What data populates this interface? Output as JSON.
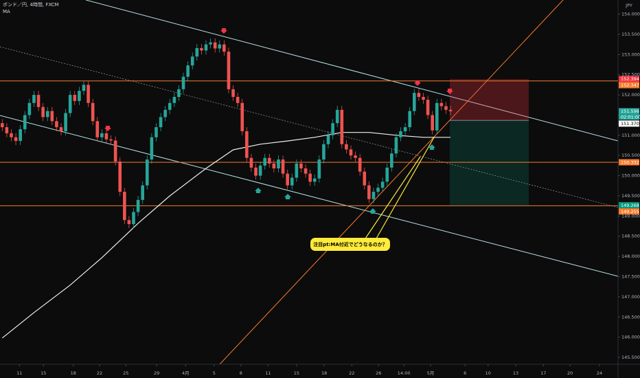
{
  "chart_data": {
    "type": "candlestick",
    "title": "ポンド／円, 4時間, FXCM",
    "indicator": "MA",
    "currency": "JPY",
    "up_color": "#26a69a",
    "down_color": "#ef5350",
    "x": [
      0,
      1,
      2,
      3,
      4,
      5,
      6,
      7,
      8,
      9,
      10,
      11,
      12,
      13,
      14,
      15,
      16,
      17,
      18,
      19,
      20,
      21,
      22,
      23,
      24,
      25,
      26,
      27,
      28,
      29,
      30,
      31,
      32,
      33,
      34,
      35,
      36,
      37,
      38,
      39,
      40,
      41,
      42,
      43,
      44,
      45,
      46,
      47,
      48,
      49,
      50,
      51,
      52,
      53,
      54,
      55,
      56,
      57,
      58,
      59,
      60,
      61,
      62,
      63,
      64,
      65,
      66,
      67,
      68,
      69,
      70,
      71,
      72,
      73,
      74,
      75,
      76,
      77,
      78,
      79,
      80,
      81,
      82,
      83,
      84,
      85,
      86,
      87,
      88,
      89,
      90,
      91,
      92,
      93,
      94,
      95,
      96,
      97,
      98,
      99
    ],
    "open": [
      151.3,
      151.2,
      151.05,
      150.95,
      150.86,
      151.15,
      151.5,
      151.8,
      152.0,
      151.7,
      151.45,
      151.6,
      151.35,
      151.2,
      151.1,
      151.55,
      152.0,
      151.85,
      152.1,
      152.25,
      151.8,
      151.35,
      150.95,
      151.05,
      150.9,
      150.87,
      150.35,
      149.6,
      148.9,
      148.8,
      149.1,
      149.4,
      149.76,
      150.4,
      150.95,
      151.2,
      151.45,
      151.63,
      151.8,
      151.95,
      152.14,
      152.45,
      152.73,
      152.95,
      153.16,
      153.1,
      153.25,
      153.3,
      153.15,
      153.25,
      153.07,
      152.14,
      151.95,
      151.8,
      151.1,
      150.44,
      150.2,
      150.0,
      150.25,
      150.44,
      150.3,
      150.18,
      150.4,
      150.05,
      149.76,
      149.95,
      150.3,
      150.18,
      150.05,
      149.85,
      149.93,
      150.4,
      150.78,
      151.0,
      151.3,
      151.63,
      150.78,
      150.65,
      150.5,
      150.44,
      150.1,
      149.76,
      149.42,
      149.6,
      149.7,
      149.85,
      150.2,
      150.55,
      150.95,
      151.1,
      151.2,
      151.6,
      152.05,
      151.95,
      151.88,
      151.5,
      151.12,
      151.8,
      151.72,
      151.63
    ],
    "high": [
      151.4,
      151.3,
      151.15,
      151.05,
      151.25,
      151.6,
      151.9,
      152.1,
      152.1,
      151.8,
      151.7,
      151.7,
      151.45,
      151.3,
      151.65,
      152.1,
      152.1,
      152.2,
      152.35,
      152.35,
      151.9,
      151.45,
      151.15,
      151.15,
      151.0,
      150.97,
      150.45,
      149.7,
      149.0,
      149.2,
      149.5,
      149.86,
      150.5,
      151.05,
      151.3,
      151.55,
      151.73,
      151.9,
      152.05,
      152.24,
      152.55,
      152.83,
      153.05,
      153.26,
      153.26,
      153.35,
      153.4,
      153.4,
      153.35,
      153.35,
      153.17,
      152.24,
      152.05,
      151.9,
      151.2,
      150.54,
      150.3,
      150.35,
      150.54,
      150.54,
      150.4,
      150.5,
      150.5,
      150.15,
      150.05,
      150.4,
      150.4,
      150.28,
      150.15,
      150.03,
      150.5,
      150.88,
      151.1,
      151.4,
      151.73,
      151.73,
      150.88,
      150.75,
      150.6,
      150.54,
      150.2,
      149.86,
      149.7,
      149.8,
      149.95,
      150.3,
      150.65,
      151.05,
      151.2,
      151.3,
      151.7,
      152.15,
      152.15,
      152.05,
      151.98,
      151.6,
      151.9,
      151.9,
      151.82,
      151.73
    ],
    "low": [
      151.1,
      150.95,
      150.85,
      150.76,
      150.76,
      151.05,
      151.4,
      151.7,
      151.6,
      151.35,
      151.35,
      151.25,
      151.1,
      151.0,
      151.0,
      151.45,
      151.75,
      151.75,
      152.0,
      151.7,
      151.25,
      150.85,
      150.85,
      150.8,
      150.77,
      150.25,
      149.5,
      148.8,
      148.7,
      148.7,
      149.0,
      149.3,
      149.66,
      150.3,
      150.85,
      151.1,
      151.35,
      151.53,
      151.7,
      151.85,
      152.04,
      152.35,
      152.63,
      152.85,
      153.0,
      153.0,
      153.15,
      153.05,
      153.05,
      152.97,
      152.04,
      151.85,
      151.7,
      151.0,
      150.34,
      150.1,
      149.9,
      149.9,
      150.15,
      150.2,
      150.08,
      150.08,
      149.95,
      149.66,
      149.66,
      149.85,
      150.08,
      149.95,
      149.75,
      149.75,
      149.83,
      150.3,
      150.68,
      150.9,
      151.2,
      150.68,
      150.55,
      150.4,
      150.34,
      150.0,
      149.66,
      149.32,
      149.32,
      149.5,
      149.6,
      149.75,
      150.1,
      150.45,
      150.85,
      151.0,
      151.1,
      151.5,
      151.85,
      151.78,
      151.4,
      151.02,
      151.02,
      151.62,
      151.53,
      151.496
    ],
    "close": [
      151.2,
      151.05,
      150.95,
      150.86,
      151.15,
      151.5,
      151.8,
      152.0,
      151.7,
      151.45,
      151.6,
      151.35,
      151.2,
      151.1,
      151.55,
      152.0,
      151.85,
      152.1,
      152.25,
      151.8,
      151.35,
      150.95,
      151.05,
      150.9,
      150.87,
      150.35,
      149.6,
      148.9,
      148.8,
      149.1,
      149.4,
      149.76,
      150.4,
      150.95,
      151.2,
      151.45,
      151.63,
      151.8,
      151.95,
      152.14,
      152.45,
      152.73,
      152.95,
      153.16,
      153.1,
      153.25,
      153.3,
      153.15,
      153.25,
      153.07,
      152.14,
      151.95,
      151.8,
      151.1,
      150.44,
      150.2,
      150.0,
      150.25,
      150.44,
      150.3,
      150.18,
      150.4,
      150.05,
      149.76,
      149.95,
      150.3,
      150.18,
      150.05,
      149.85,
      149.93,
      150.4,
      150.78,
      151.0,
      151.3,
      151.63,
      150.78,
      150.65,
      150.5,
      150.44,
      150.1,
      149.76,
      149.42,
      149.6,
      149.7,
      149.85,
      150.2,
      150.55,
      150.95,
      151.1,
      151.2,
      151.6,
      152.05,
      151.95,
      151.88,
      151.5,
      151.12,
      151.8,
      151.72,
      151.63,
      151.596
    ],
    "ma": {
      "color": "#f0f0f0",
      "x": [
        0,
        7,
        15,
        22,
        30,
        37,
        45,
        51,
        57,
        63,
        69,
        75,
        81,
        87,
        93,
        99
      ],
      "values": [
        145.98,
        146.61,
        147.29,
        147.97,
        148.82,
        149.5,
        150.18,
        150.64,
        150.78,
        150.86,
        150.95,
        151.07,
        151.07,
        151.0,
        150.95,
        150.95
      ]
    },
    "xlim": [
      -0.5,
      136
    ],
    "ylim": [
      145.33,
      154.35
    ],
    "xticks": [
      {
        "value": 3.8,
        "label": "11"
      },
      {
        "value": 9.1,
        "label": "15"
      },
      {
        "value": 15.7,
        "label": "18"
      },
      {
        "value": 21.5,
        "label": "22"
      },
      {
        "value": 27.3,
        "label": "25"
      },
      {
        "value": 34.1,
        "label": "29"
      },
      {
        "value": 40.5,
        "label": "4月"
      },
      {
        "value": 46.8,
        "label": "5"
      },
      {
        "value": 52.7,
        "label": "8"
      },
      {
        "value": 58.7,
        "label": "11"
      },
      {
        "value": 65.0,
        "label": "15"
      },
      {
        "value": 71.1,
        "label": "18"
      },
      {
        "value": 77.2,
        "label": "22"
      },
      {
        "value": 83.1,
        "label": "26"
      },
      {
        "value": 88.7,
        "label": "14:00"
      },
      {
        "value": 94.6,
        "label": "5月"
      },
      {
        "value": 102.2,
        "label": "6"
      },
      {
        "value": 107.3,
        "label": "10"
      },
      {
        "value": 113.4,
        "label": "13"
      },
      {
        "value": 119.5,
        "label": "17"
      },
      {
        "value": 125.4,
        "label": "20"
      },
      {
        "value": 131.9,
        "label": "24"
      }
    ],
    "yticks": [
      {
        "value": 145.5,
        "label": "145.500"
      },
      {
        "value": 146,
        "label": "146.000"
      },
      {
        "value": 146.5,
        "label": "146.500"
      },
      {
        "value": 147,
        "label": "147.000"
      },
      {
        "value": 147.5,
        "label": "147.500"
      },
      {
        "value": 148,
        "label": "148.000"
      },
      {
        "value": 148.5,
        "label": "148.500"
      },
      {
        "value": 149,
        "label": "149.000"
      },
      {
        "value": 149.5,
        "label": "149.500"
      },
      {
        "value": 150,
        "label": "150.000"
      },
      {
        "value": 150.5,
        "label": "150.500"
      },
      {
        "value": 151,
        "label": "151.000"
      },
      {
        "value": 151.5,
        "label": "151.500"
      },
      {
        "value": 152,
        "label": "152.000"
      },
      {
        "value": 152.5,
        "label": "152.500"
      },
      {
        "value": 153,
        "label": "153.000"
      },
      {
        "value": 153.5,
        "label": "153.500"
      },
      {
        "value": 154,
        "label": "154.000"
      }
    ],
    "levels": {
      "color": "#f57c2c",
      "values": [
        152.347,
        150.332,
        149.255
      ]
    },
    "position": {
      "stop": 152.394,
      "entry": 151.37,
      "target": 149.268
    },
    "price_labels": [
      {
        "value": 152.394,
        "label": "152.394",
        "color": "#f23645"
      },
      {
        "value": 152.347,
        "label": "152.347",
        "color": "#f57c2c"
      },
      {
        "value": 151.596,
        "label": "151.596",
        "color": "#26a69a"
      },
      {
        "value": 151.37,
        "label": "151.370",
        "color": "#ffffff"
      },
      {
        "value": 150.332,
        "label": "150.332",
        "color": "#f57c2c"
      },
      {
        "value": 149.268,
        "label": "149.268",
        "color": "#089981"
      },
      {
        "value": 149.255,
        "label": "149.255",
        "color": "#f57c2c"
      }
    ],
    "countdown": "02:01:00",
    "annotation": "注目pt:MA付近でどうなるのか？"
  }
}
